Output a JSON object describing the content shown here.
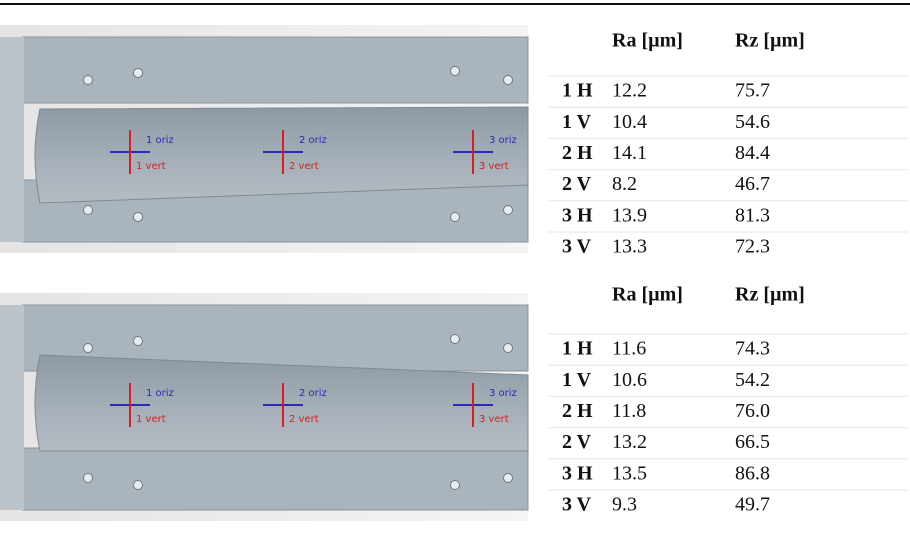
{
  "figures": [
    {
      "markers": [
        {
          "h": "1 oriz",
          "v": "1 vert"
        },
        {
          "h": "2 oriz",
          "v": "2 vert"
        },
        {
          "h": "3 oriz",
          "v": "3 vert"
        }
      ]
    },
    {
      "markers": [
        {
          "h": "1 oriz",
          "v": "1 vert"
        },
        {
          "h": "2 oriz",
          "v": "2 vert"
        },
        {
          "h": "3 oriz",
          "v": "3 vert"
        }
      ]
    }
  ],
  "tables": [
    {
      "header": [
        "Ra [µm]",
        "Rz [µm]"
      ],
      "rows": [
        [
          "1 H",
          "12.2",
          "75.7"
        ],
        [
          "1 V",
          "10.4",
          "54.6"
        ],
        [
          "2 H",
          "14.1",
          "84.4"
        ],
        [
          "2 V",
          "8.2",
          "46.7"
        ],
        [
          "3 H",
          "13.9",
          "81.3"
        ],
        [
          "3 V",
          "13.3",
          "72.3"
        ]
      ]
    },
    {
      "header": [
        "Ra [µm]",
        "Rz [µm]"
      ],
      "rows": [
        [
          "1 H",
          "11.6",
          "74.3"
        ],
        [
          "1 V",
          "10.6",
          "54.2"
        ],
        [
          "2 H",
          "11.8",
          "76.0"
        ],
        [
          "2 V",
          "13.2",
          "66.5"
        ],
        [
          "3 H",
          "13.5",
          "86.8"
        ],
        [
          "3 V",
          "9.3",
          "49.7"
        ]
      ]
    }
  ]
}
